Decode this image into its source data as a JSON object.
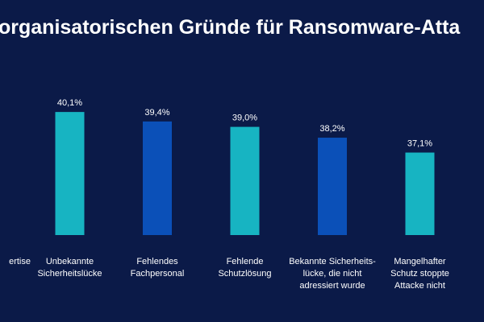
{
  "chart_data": {
    "type": "bar",
    "title": "organisatorischen Gründe für Ransomware-Atta",
    "categories": [
      "ertise",
      "Unbekannte\nSicherheitslücke",
      "Fehlendes\nFachpersonal",
      "Fehlende\nSchutzlösung",
      "Bekannte Sicherheits-\nlücke, die nicht\nadressiert wurde",
      "Mangelhafter\nSchutz stoppte\nAttacke nicht"
    ],
    "values": [
      null,
      40.1,
      39.4,
      39.0,
      38.2,
      37.1
    ],
    "value_labels": [
      null,
      "40,1%",
      "39,4%",
      "39,0%",
      "38,2%",
      "37,1%"
    ],
    "colors": [
      "#17b4c2",
      "#17b4c2",
      "#0b50b8",
      "#17b4c2",
      "#0b50b8",
      "#17b4c2"
    ],
    "ylim": [
      31,
      41
    ]
  }
}
